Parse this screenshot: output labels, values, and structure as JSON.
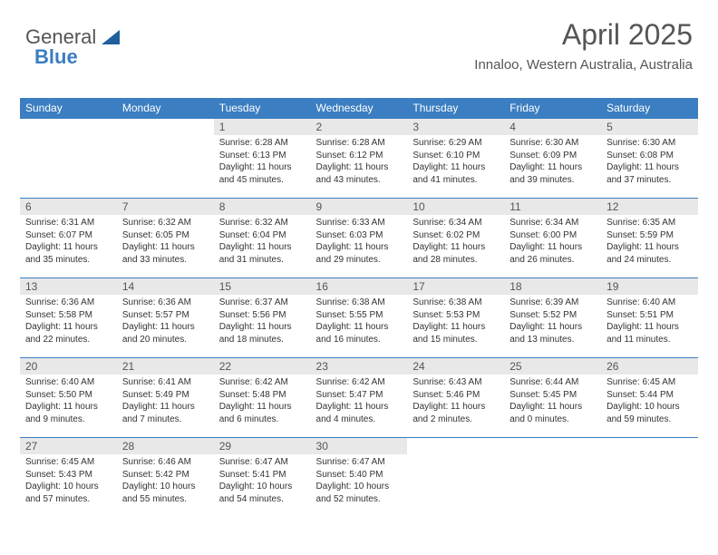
{
  "logo": {
    "text1": "General",
    "text2": "Blue",
    "tri_color": "#1f5f9c"
  },
  "header": {
    "title": "April 2025",
    "subtitle": "Innaloo, Western Australia, Australia"
  },
  "colors": {
    "header_bg": "#3b7ec1",
    "header_text": "#ffffff",
    "daynum_bg": "#e8e8e8",
    "border": "#3b7ec1"
  },
  "weekdays": [
    "Sunday",
    "Monday",
    "Tuesday",
    "Wednesday",
    "Thursday",
    "Friday",
    "Saturday"
  ],
  "weeks": [
    [
      {
        "empty": true
      },
      {
        "empty": true
      },
      {
        "n": "1",
        "sr": "6:28 AM",
        "ss": "6:13 PM",
        "d1": "11 hours",
        "d2": "and 45 minutes."
      },
      {
        "n": "2",
        "sr": "6:28 AM",
        "ss": "6:12 PM",
        "d1": "11 hours",
        "d2": "and 43 minutes."
      },
      {
        "n": "3",
        "sr": "6:29 AM",
        "ss": "6:10 PM",
        "d1": "11 hours",
        "d2": "and 41 minutes."
      },
      {
        "n": "4",
        "sr": "6:30 AM",
        "ss": "6:09 PM",
        "d1": "11 hours",
        "d2": "and 39 minutes."
      },
      {
        "n": "5",
        "sr": "6:30 AM",
        "ss": "6:08 PM",
        "d1": "11 hours",
        "d2": "and 37 minutes."
      }
    ],
    [
      {
        "n": "6",
        "sr": "6:31 AM",
        "ss": "6:07 PM",
        "d1": "11 hours",
        "d2": "and 35 minutes."
      },
      {
        "n": "7",
        "sr": "6:32 AM",
        "ss": "6:05 PM",
        "d1": "11 hours",
        "d2": "and 33 minutes."
      },
      {
        "n": "8",
        "sr": "6:32 AM",
        "ss": "6:04 PM",
        "d1": "11 hours",
        "d2": "and 31 minutes."
      },
      {
        "n": "9",
        "sr": "6:33 AM",
        "ss": "6:03 PM",
        "d1": "11 hours",
        "d2": "and 29 minutes."
      },
      {
        "n": "10",
        "sr": "6:34 AM",
        "ss": "6:02 PM",
        "d1": "11 hours",
        "d2": "and 28 minutes."
      },
      {
        "n": "11",
        "sr": "6:34 AM",
        "ss": "6:00 PM",
        "d1": "11 hours",
        "d2": "and 26 minutes."
      },
      {
        "n": "12",
        "sr": "6:35 AM",
        "ss": "5:59 PM",
        "d1": "11 hours",
        "d2": "and 24 minutes."
      }
    ],
    [
      {
        "n": "13",
        "sr": "6:36 AM",
        "ss": "5:58 PM",
        "d1": "11 hours",
        "d2": "and 22 minutes."
      },
      {
        "n": "14",
        "sr": "6:36 AM",
        "ss": "5:57 PM",
        "d1": "11 hours",
        "d2": "and 20 minutes."
      },
      {
        "n": "15",
        "sr": "6:37 AM",
        "ss": "5:56 PM",
        "d1": "11 hours",
        "d2": "and 18 minutes."
      },
      {
        "n": "16",
        "sr": "6:38 AM",
        "ss": "5:55 PM",
        "d1": "11 hours",
        "d2": "and 16 minutes."
      },
      {
        "n": "17",
        "sr": "6:38 AM",
        "ss": "5:53 PM",
        "d1": "11 hours",
        "d2": "and 15 minutes."
      },
      {
        "n": "18",
        "sr": "6:39 AM",
        "ss": "5:52 PM",
        "d1": "11 hours",
        "d2": "and 13 minutes."
      },
      {
        "n": "19",
        "sr": "6:40 AM",
        "ss": "5:51 PM",
        "d1": "11 hours",
        "d2": "and 11 minutes."
      }
    ],
    [
      {
        "n": "20",
        "sr": "6:40 AM",
        "ss": "5:50 PM",
        "d1": "11 hours",
        "d2": "and 9 minutes."
      },
      {
        "n": "21",
        "sr": "6:41 AM",
        "ss": "5:49 PM",
        "d1": "11 hours",
        "d2": "and 7 minutes."
      },
      {
        "n": "22",
        "sr": "6:42 AM",
        "ss": "5:48 PM",
        "d1": "11 hours",
        "d2": "and 6 minutes."
      },
      {
        "n": "23",
        "sr": "6:42 AM",
        "ss": "5:47 PM",
        "d1": "11 hours",
        "d2": "and 4 minutes."
      },
      {
        "n": "24",
        "sr": "6:43 AM",
        "ss": "5:46 PM",
        "d1": "11 hours",
        "d2": "and 2 minutes."
      },
      {
        "n": "25",
        "sr": "6:44 AM",
        "ss": "5:45 PM",
        "d1": "11 hours",
        "d2": "and 0 minutes."
      },
      {
        "n": "26",
        "sr": "6:45 AM",
        "ss": "5:44 PM",
        "d1": "10 hours",
        "d2": "and 59 minutes."
      }
    ],
    [
      {
        "n": "27",
        "sr": "6:45 AM",
        "ss": "5:43 PM",
        "d1": "10 hours",
        "d2": "and 57 minutes."
      },
      {
        "n": "28",
        "sr": "6:46 AM",
        "ss": "5:42 PM",
        "d1": "10 hours",
        "d2": "and 55 minutes."
      },
      {
        "n": "29",
        "sr": "6:47 AM",
        "ss": "5:41 PM",
        "d1": "10 hours",
        "d2": "and 54 minutes."
      },
      {
        "n": "30",
        "sr": "6:47 AM",
        "ss": "5:40 PM",
        "d1": "10 hours",
        "d2": "and 52 minutes."
      },
      {
        "empty": true
      },
      {
        "empty": true
      },
      {
        "empty": true
      }
    ]
  ]
}
